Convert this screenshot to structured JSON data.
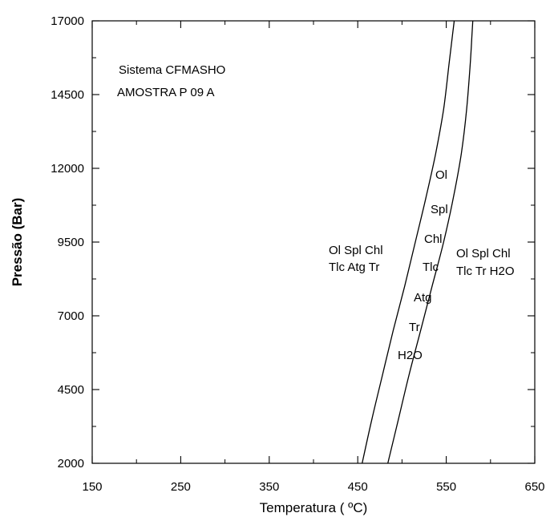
{
  "chart_data": {
    "type": "line",
    "title": "",
    "xlabel": "Temperatura ( ºC)",
    "ylabel": "Pressão (Bar)",
    "xlim": [
      150,
      650
    ],
    "ylim": [
      2000,
      17000
    ],
    "x_ticks": [
      "150",
      "250",
      "350",
      "450",
      "550",
      "650"
    ],
    "y_ticks": [
      "2000",
      "4500",
      "7000",
      "9500",
      "12000",
      "14500",
      "17000"
    ],
    "grid": false,
    "annotations": {
      "system": "Sistema CFMASHO",
      "sample": "AMOSTRA P 09 A",
      "left_field_line1": "Ol Spl Chl",
      "left_field_line2": "Tlc Atg Tr",
      "right_field_line1": "Ol Spl Chl",
      "right_field_line2": "Tlc Tr H2O"
    },
    "band_phases": [
      "Ol",
      "Spl",
      "Chl",
      "Tlc",
      "Atg",
      "Tr",
      "H2O"
    ],
    "series": [
      {
        "x": [
          455,
          466,
          478,
          490,
          503,
          515,
          527,
          538,
          547,
          553,
          557,
          559
        ],
        "y": [
          2000,
          3500,
          5000,
          6500,
          8000,
          9500,
          11000,
          12500,
          14000,
          15500,
          16500,
          17000
        ]
      },
      {
        "x": [
          484,
          496,
          508,
          521,
          534,
          547,
          558,
          567,
          573,
          577,
          579,
          580
        ],
        "y": [
          2000,
          3500,
          5000,
          6500,
          8000,
          9500,
          11000,
          12500,
          14000,
          15500,
          16500,
          17000
        ]
      }
    ]
  }
}
